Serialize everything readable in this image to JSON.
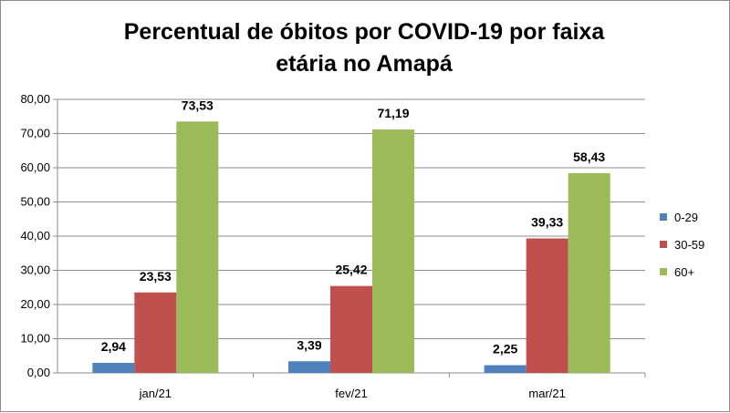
{
  "chart_data": {
    "type": "bar",
    "title_lines": [
      "Percentual de óbitos por COVID-19 por faixa",
      "etária no Amapá"
    ],
    "categories": [
      "jan/21",
      "fev/21",
      "mar/21"
    ],
    "series": [
      {
        "name": "0-29",
        "values": [
          2.94,
          3.39,
          2.25
        ],
        "labels": [
          "2,94",
          "3,39",
          "2,25"
        ],
        "color": "#4f81bd"
      },
      {
        "name": "30-59",
        "values": [
          23.53,
          25.42,
          39.33
        ],
        "labels": [
          "23,53",
          "25,42",
          "39,33"
        ],
        "color": "#c0504d"
      },
      {
        "name": "60+",
        "values": [
          73.53,
          71.19,
          58.43
        ],
        "labels": [
          "73,53",
          "71,19",
          "58,43"
        ],
        "color": "#9bbb59"
      }
    ],
    "ylim": [
      0,
      80
    ],
    "yticks": [
      0,
      10,
      20,
      30,
      40,
      50,
      60,
      70,
      80
    ],
    "ytick_labels": [
      "0,00",
      "10,00",
      "20,00",
      "30,00",
      "40,00",
      "50,00",
      "60,00",
      "70,00",
      "80,00"
    ],
    "grid": true,
    "legend_position": "right"
  }
}
